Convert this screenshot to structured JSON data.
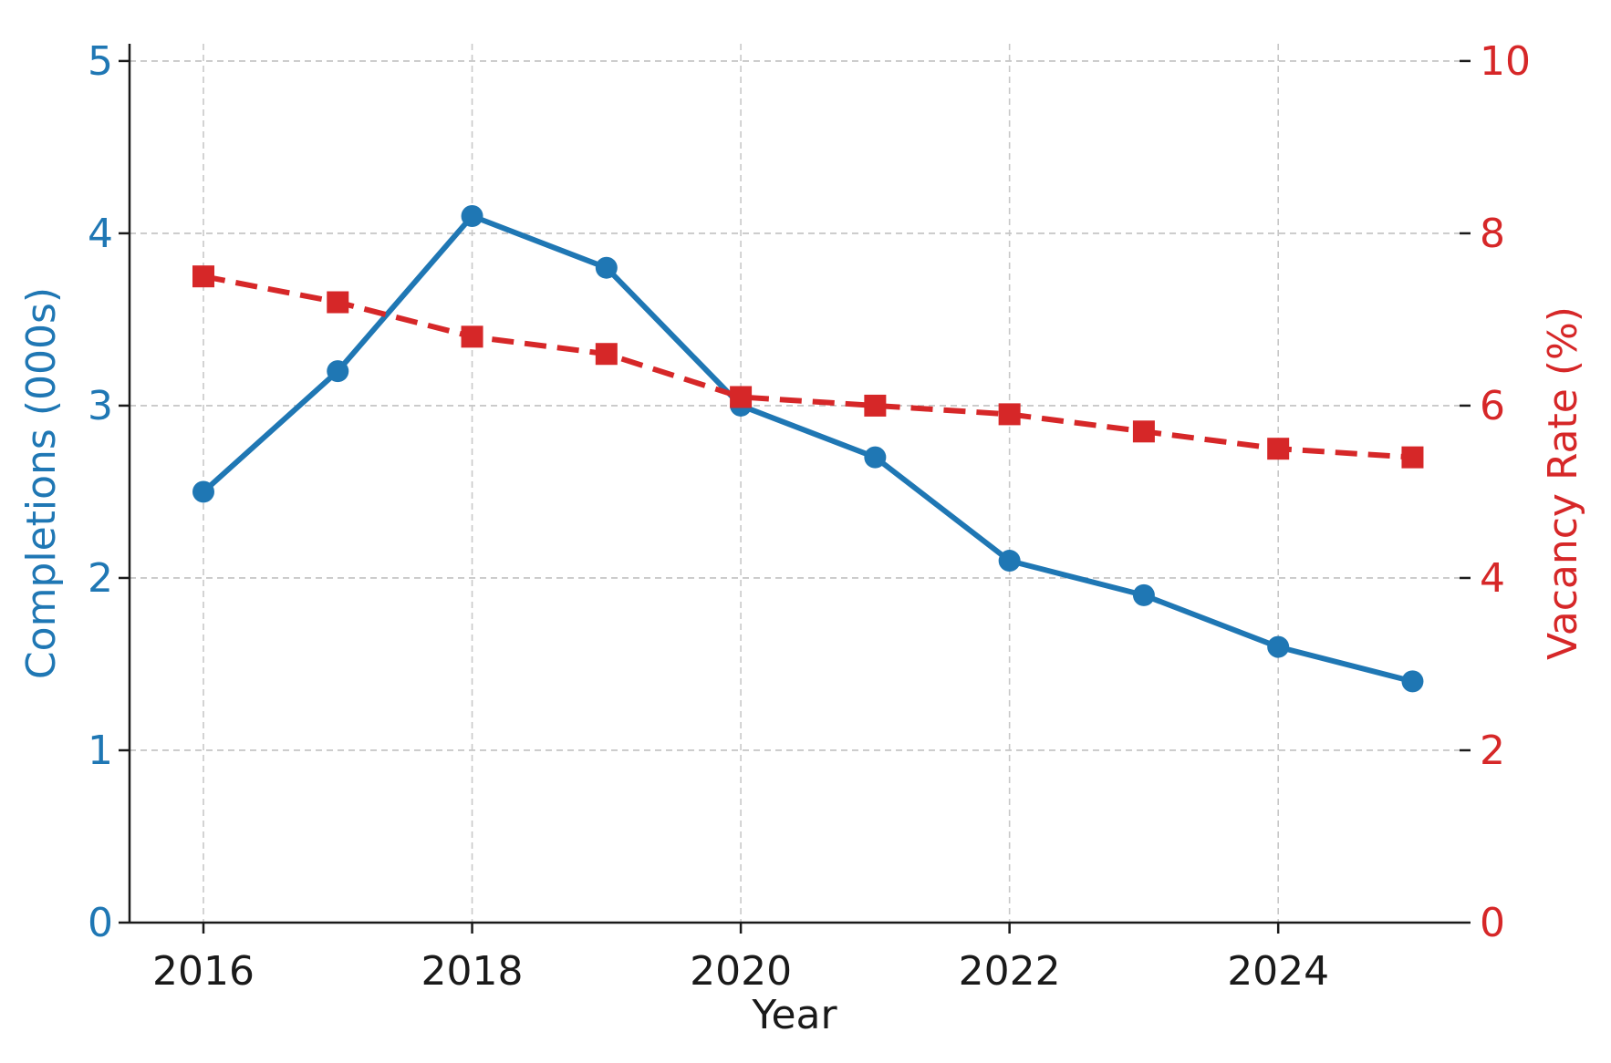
{
  "chart_data": {
    "type": "line",
    "title": "",
    "xlabel": "Year",
    "ylabel_left": "Completions (000s)",
    "ylabel_right": "Vacancy Rate (%)",
    "x": [
      2016,
      2017,
      2018,
      2019,
      2020,
      2021,
      2022,
      2023,
      2024,
      2025
    ],
    "xticks": [
      "2016",
      "2018",
      "2020",
      "2022",
      "2024"
    ],
    "xlim": [
      2015.45,
      2025.35
    ],
    "ylim_left": [
      0,
      5.1
    ],
    "yticks_left": [
      "0",
      "1",
      "2",
      "3",
      "4",
      "5"
    ],
    "ylim_right": [
      0,
      10.2
    ],
    "yticks_right": [
      "0",
      "2",
      "4",
      "6",
      "8",
      "10"
    ],
    "grid": true,
    "series": [
      {
        "name": "Completions (000s)",
        "axis": "left",
        "color": "#1f77b4",
        "marker": "circle",
        "linestyle": "solid",
        "values": [
          2.5,
          3.2,
          4.1,
          3.8,
          3.0,
          2.7,
          2.1,
          1.9,
          1.6,
          1.4
        ]
      },
      {
        "name": "Vacancy Rate (%)",
        "axis": "right",
        "color": "#d62728",
        "marker": "square",
        "linestyle": "dashed",
        "values": [
          7.5,
          7.2,
          6.8,
          6.6,
          6.1,
          6.0,
          5.9,
          5.7,
          5.5,
          5.4
        ]
      }
    ]
  }
}
